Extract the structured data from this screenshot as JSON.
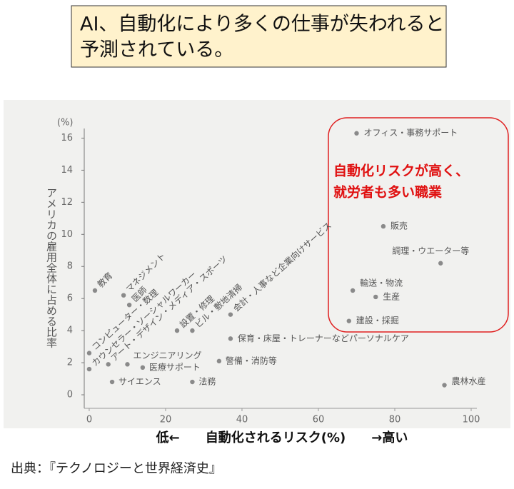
{
  "chart_data": {
    "type": "scatter",
    "title": [
      "AI、自動化により多くの仕事が失われると",
      "予測されている。"
    ],
    "y_unit": "(%)",
    "ylabel": "アメリカの雇用全体に占める比率",
    "xlabel": "低←　　自動化されるリスク(%)　　→高い",
    "source": "出典：『テクノロジーと世界経済史』",
    "annotation": [
      "自動化リスクが高く、",
      "就労者も多い職業"
    ],
    "labels": [
      "オフィス・事務サポート",
      "販売",
      "調理・ウエーター等",
      "輸送・物流",
      "生産",
      "建設・採掘",
      "農林水産",
      "教育",
      "マネジメント",
      "医師",
      "コンピューター・数理",
      "カウンセラー・ソーシャルワーカー",
      "アート・デザイン・メディア・スポーツ",
      "設置・修理",
      "ビル・敷地清掃",
      "会計・人事など企業向けサービス",
      "保育・床屋・トレーナーなどパーソナルケア",
      "エンジニアリング",
      "医療サポート",
      "警備・消防等",
      "サイエンス",
      "法務"
    ],
    "x": [
      70,
      77,
      92,
      69,
      75,
      68,
      93,
      1.5,
      9,
      10.5,
      0,
      0,
      5,
      23,
      27,
      37,
      37,
      10,
      14,
      34,
      6,
      27
    ],
    "y": [
      16.3,
      10.5,
      8.2,
      6.5,
      6.1,
      4.6,
      0.6,
      6.5,
      6.2,
      5.6,
      2.6,
      1.6,
      1.9,
      4.0,
      4.0,
      5.0,
      3.5,
      1.9,
      1.7,
      2.1,
      0.8,
      0.8
    ],
    "color": "#8a8a8a",
    "xlim": [
      -1.3,
      100
    ],
    "ylim": [
      -0.8,
      17
    ],
    "xticks": [
      0,
      20,
      40,
      60,
      80,
      100
    ],
    "yticks": [
      0,
      2,
      4,
      6,
      8,
      10,
      12,
      14,
      16
    ]
  }
}
